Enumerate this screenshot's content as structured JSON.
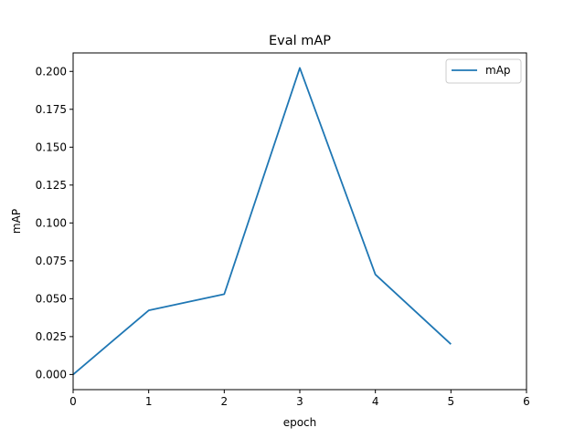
{
  "chart_data": {
    "type": "line",
    "title": "Eval mAP",
    "xlabel": "epoch",
    "ylabel": "mAP",
    "x": [
      0,
      1,
      2,
      3,
      4,
      5
    ],
    "series": [
      {
        "name": "mAp",
        "color": "#1f77b4",
        "values": [
          0.0,
          0.0423,
          0.053,
          0.2023,
          0.066,
          0.02
        ]
      }
    ],
    "xlim": [
      0,
      6
    ],
    "ylim": [
      -0.01,
      0.2122
    ],
    "xticks": [
      0,
      1,
      2,
      3,
      4,
      5,
      6
    ],
    "xtick_labels": [
      "0",
      "1",
      "2",
      "3",
      "4",
      "5",
      "6"
    ],
    "yticks": [
      0.0,
      0.025,
      0.05,
      0.075,
      0.1,
      0.125,
      0.15,
      0.175,
      0.2
    ],
    "ytick_labels": [
      "0.000",
      "0.025",
      "0.050",
      "0.075",
      "0.100",
      "0.125",
      "0.150",
      "0.175",
      "0.200"
    ],
    "grid": false,
    "legend_position": "top-right"
  }
}
